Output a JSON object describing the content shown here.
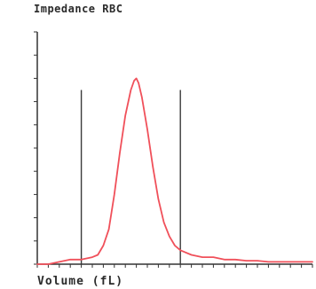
{
  "chart_data": {
    "type": "line",
    "title": "Impedance RBC",
    "xlabel": "Volume (fL)",
    "ylabel": "",
    "series": [
      {
        "color": "#f0505a",
        "x": [
          0,
          10,
          20,
          30,
          40,
          50,
          55,
          60,
          65,
          70,
          75,
          80,
          85,
          88,
          90,
          92,
          95,
          100,
          105,
          110,
          115,
          120,
          125,
          130,
          140,
          150,
          160,
          170,
          180,
          190,
          200,
          210,
          220,
          230,
          240,
          250
        ],
        "y": [
          0,
          0,
          1,
          2,
          2,
          3,
          4,
          8,
          15,
          30,
          48,
          64,
          75,
          79,
          80,
          78,
          72,
          58,
          42,
          28,
          18,
          12,
          8,
          6,
          4,
          3,
          3,
          2,
          2,
          1.5,
          1.5,
          1,
          1,
          1,
          1,
          1
        ]
      }
    ],
    "gates": [
      40,
      130
    ],
    "xlim": [
      0,
      250
    ],
    "ylim": [
      0,
      100
    ],
    "xticks": [
      0,
      10,
      20,
      30,
      40,
      50,
      60,
      70,
      80,
      90,
      100,
      110,
      120,
      130,
      140,
      150,
      160,
      170,
      180,
      190,
      200,
      210,
      220,
      230,
      240,
      250
    ],
    "yticks": [
      0,
      10,
      20,
      30,
      40,
      50,
      60,
      70,
      80,
      90,
      100
    ],
    "grid": false,
    "axis_color": "#333333",
    "gate_color": "#3a3a3a"
  }
}
